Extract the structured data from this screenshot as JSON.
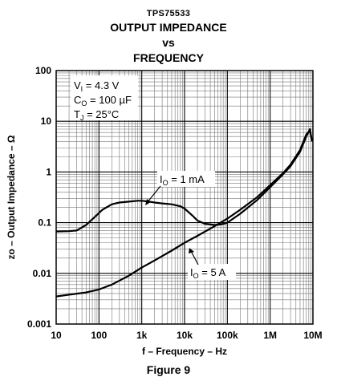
{
  "header": {
    "part": "TPS75533",
    "title_line1": "OUTPUT IMPEDANCE",
    "title_line2": "vs",
    "title_line3": "FREQUENCY"
  },
  "caption": "Figure 9",
  "conditions": {
    "vi": {
      "sym": "V",
      "sub": "I",
      "val": " = 4.3 V"
    },
    "co": {
      "sym": "C",
      "sub": "O",
      "val": " = 100 µF"
    },
    "tj": {
      "sym": "T",
      "sub": "J",
      "val": " = 25°C"
    }
  },
  "chart_data": {
    "type": "line",
    "title": "TPS75533 OUTPUT IMPEDANCE vs FREQUENCY",
    "xlabel": "f – Frequency – Hz",
    "ylabel": "zo – Output Impedance – Ω",
    "xscale": "log",
    "yscale": "log",
    "xlim": [
      10,
      10000000
    ],
    "ylim": [
      0.001,
      100
    ],
    "grid": true,
    "x_ticks": [
      10,
      100,
      1000,
      10000,
      100000,
      1000000,
      10000000
    ],
    "x_tick_labels": [
      "10",
      "100",
      "1k",
      "10k",
      "100k",
      "1M",
      "10M"
    ],
    "y_ticks": [
      0.001,
      0.01,
      0.1,
      1,
      10,
      100
    ],
    "y_tick_labels": [
      "0.001",
      "0.01",
      "0.1",
      "1",
      "10",
      "100"
    ],
    "series": [
      {
        "name": "IO = 1 mA",
        "x": [
          10,
          20,
          30,
          50,
          80,
          120,
          200,
          300,
          500,
          800,
          1000,
          1500,
          2000,
          3000,
          5000,
          8000,
          10000,
          15000,
          20000,
          30000,
          50000,
          70000,
          100000,
          200000,
          500000,
          1000000,
          2000000,
          3000000,
          5000000,
          7000000,
          8500000,
          9500000
        ],
        "y": [
          0.067,
          0.068,
          0.07,
          0.09,
          0.13,
          0.18,
          0.23,
          0.25,
          0.26,
          0.27,
          0.27,
          0.26,
          0.25,
          0.24,
          0.23,
          0.21,
          0.19,
          0.14,
          0.11,
          0.095,
          0.09,
          0.092,
          0.1,
          0.15,
          0.28,
          0.5,
          0.9,
          1.3,
          2.5,
          5.0,
          7.0,
          4.0
        ]
      },
      {
        "name": "IO = 5 A",
        "x": [
          10,
          20,
          50,
          100,
          200,
          500,
          1000,
          2000,
          5000,
          10000,
          20000,
          50000,
          100000,
          200000,
          500000,
          1000000,
          2000000,
          3000000,
          5000000,
          7000000,
          8500000,
          9500000
        ],
        "y": [
          0.0035,
          0.0038,
          0.0042,
          0.0048,
          0.006,
          0.009,
          0.013,
          0.018,
          0.028,
          0.04,
          0.055,
          0.085,
          0.12,
          0.18,
          0.32,
          0.55,
          0.95,
          1.4,
          2.7,
          5.5,
          6.5,
          4.2
        ]
      }
    ],
    "annotations": [
      {
        "text": "IO = 1 mA",
        "series": "IO = 1 mA"
      },
      {
        "text": "IO = 5 A",
        "series": "IO = 5 A"
      }
    ]
  }
}
